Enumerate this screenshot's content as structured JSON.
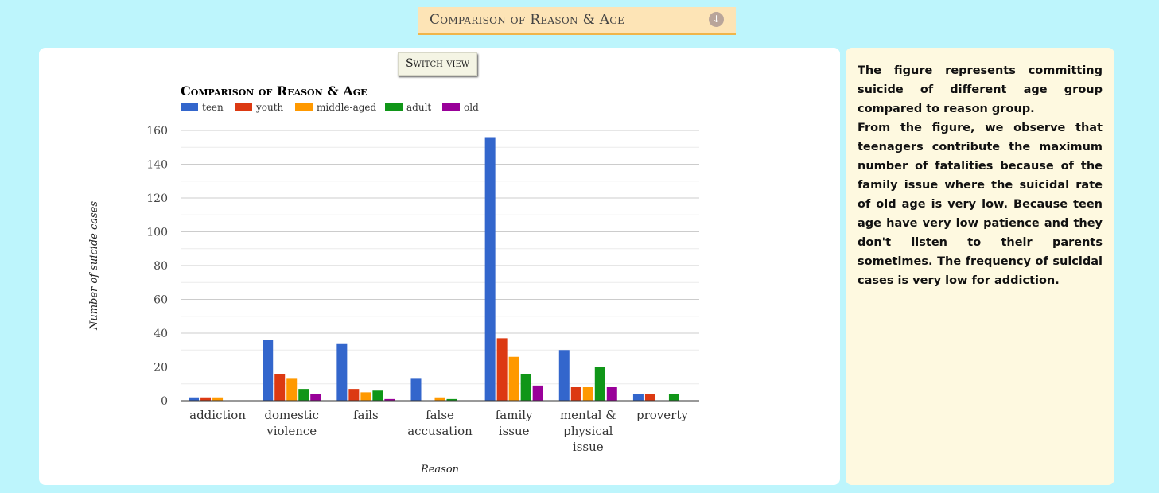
{
  "header": {
    "title": "Comparison of Reason & Age",
    "icon": "download-arrow-icon"
  },
  "switch_button": {
    "label": "Switch view"
  },
  "description": {
    "paragraphs": [
      "The figure represents committing suicide of different age group compared to reason group.",
      "From the figure, we observe that teenagers contribute the maximum number of fatalities because of the family issue where the suicidal rate of old age is very low. Because teen age have very low patience and they don't listen to their parents sometimes. The frequency of suicidal cases is very low for addiction."
    ]
  },
  "chart_data": {
    "type": "bar",
    "title": "Comparison of Reason & Age",
    "xlabel": "Reason",
    "ylabel": "Number of suicide cases",
    "ylim": [
      0,
      160
    ],
    "yticks": [
      0,
      20,
      40,
      60,
      80,
      100,
      120,
      140,
      160
    ],
    "grid": true,
    "legend_position": "top-left",
    "categories": [
      [
        "addiction"
      ],
      [
        "domestic",
        "violence"
      ],
      [
        "fails"
      ],
      [
        "false",
        "accusation"
      ],
      [
        "family",
        "issue"
      ],
      [
        "mental &",
        "physical",
        "issue"
      ],
      [
        "proverty"
      ]
    ],
    "series": [
      {
        "name": "teen",
        "color": "#3366cc",
        "values": [
          2,
          36,
          34,
          13,
          156,
          30,
          4
        ]
      },
      {
        "name": "youth",
        "color": "#dc3912",
        "values": [
          2,
          16,
          7,
          0,
          37,
          8,
          4
        ]
      },
      {
        "name": "middle-aged",
        "color": "#ff9900",
        "values": [
          2,
          13,
          5,
          2,
          26,
          8,
          0
        ]
      },
      {
        "name": "adult",
        "color": "#109618",
        "values": [
          0,
          7,
          6,
          1,
          16,
          20,
          4
        ]
      },
      {
        "name": "old",
        "color": "#990099",
        "values": [
          0,
          4,
          1,
          0,
          9,
          8,
          0
        ]
      }
    ]
  }
}
